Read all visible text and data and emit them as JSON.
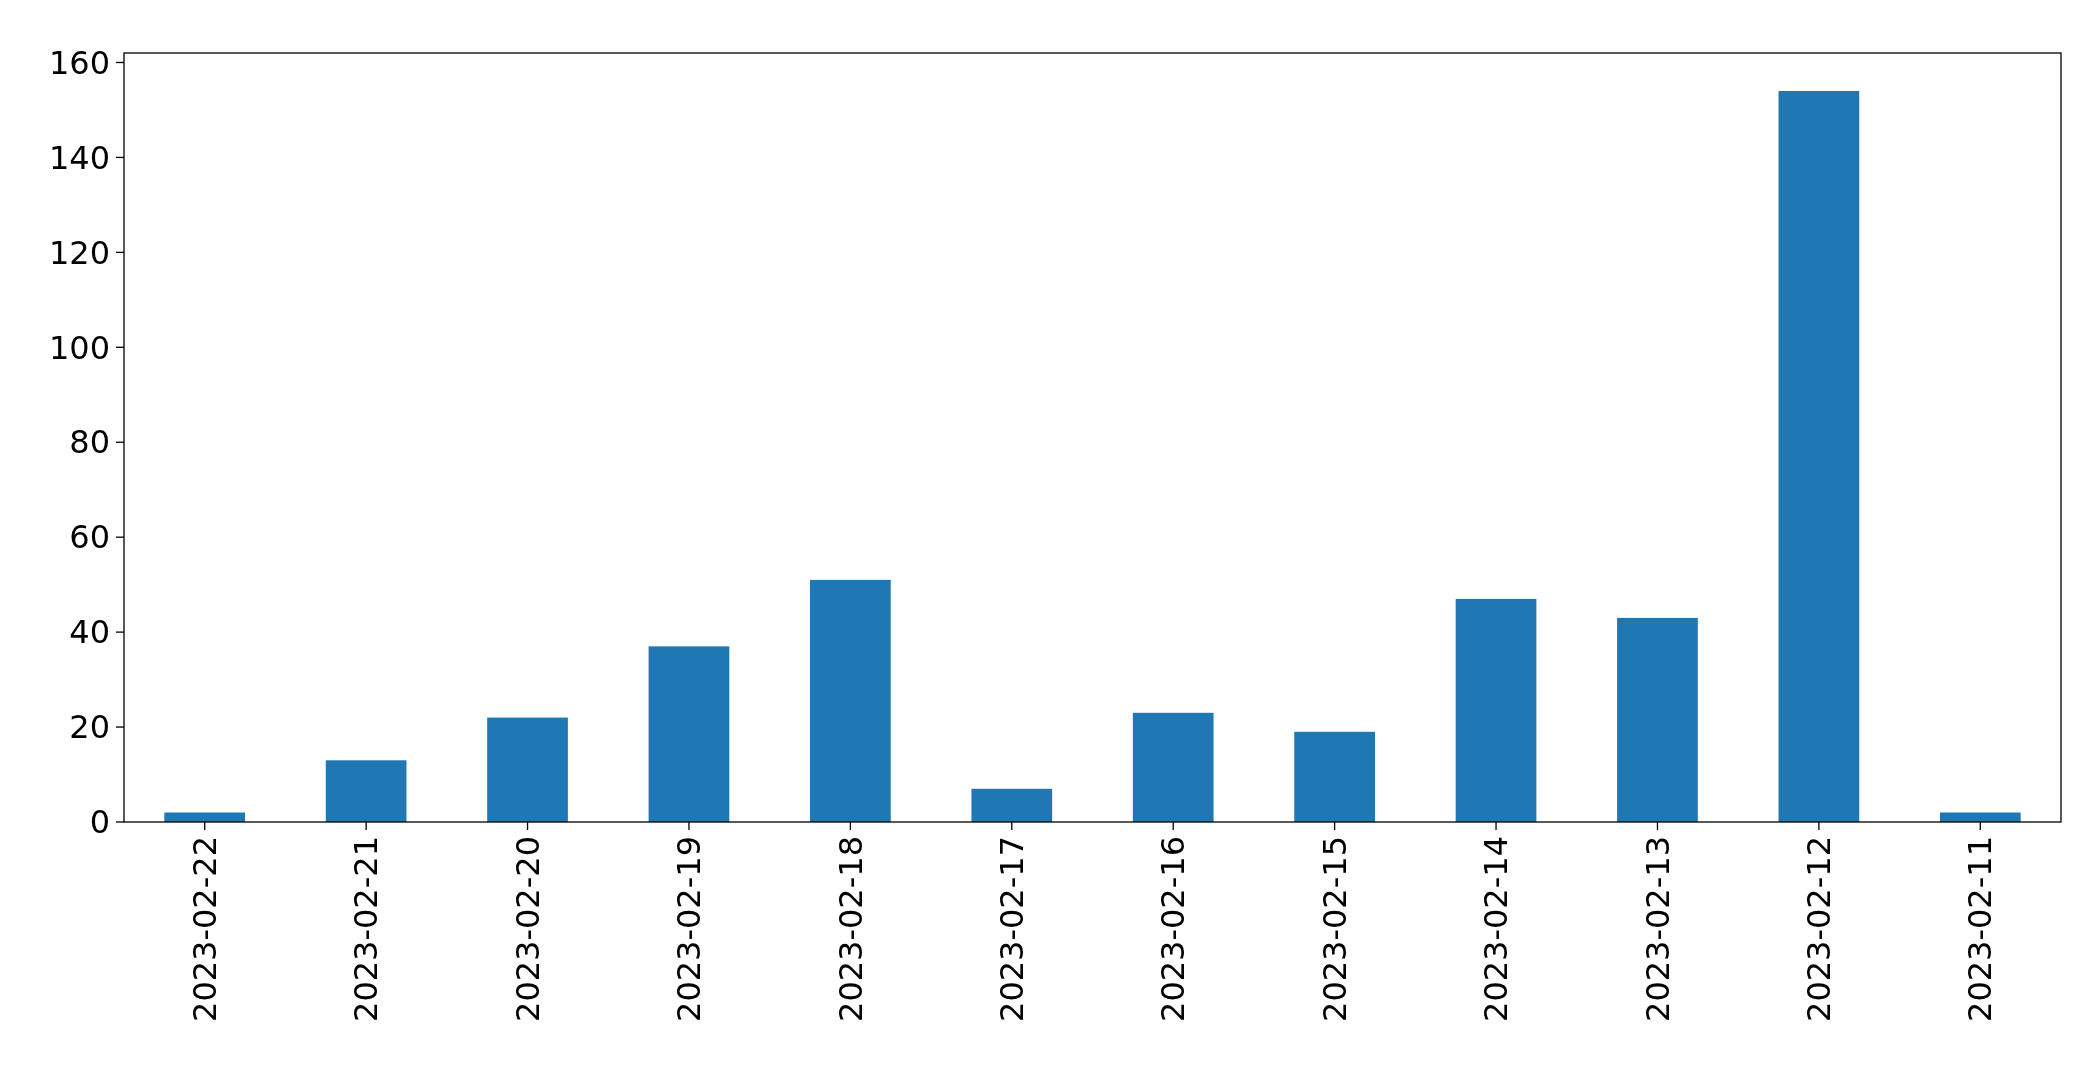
{
  "chart_data": {
    "type": "bar",
    "categories": [
      "2023-02-22",
      "2023-02-21",
      "2023-02-20",
      "2023-02-19",
      "2023-02-18",
      "2023-02-17",
      "2023-02-16",
      "2023-02-15",
      "2023-02-14",
      "2023-02-13",
      "2023-02-12",
      "2023-02-11"
    ],
    "values": [
      2,
      13,
      22,
      37,
      51,
      7,
      23,
      19,
      47,
      43,
      154,
      2
    ],
    "color": "#1f77b4",
    "ylim": [
      0,
      162
    ],
    "yticks": [
      0,
      20,
      40,
      60,
      80,
      100,
      120,
      140,
      160
    ],
    "grid": false
  }
}
